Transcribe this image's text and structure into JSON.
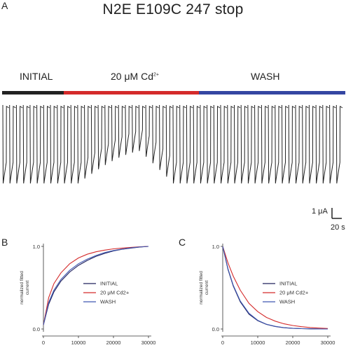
{
  "panel_a": {
    "letter": "A",
    "title": "N2E E109C 247 stop",
    "conditions": [
      {
        "label_main": "INITIAL",
        "label_sup": "",
        "color": "#222222"
      },
      {
        "label_main": "20 μM Cd",
        "label_sup": "2+",
        "color": "#d42a2a"
      },
      {
        "label_main": "WASH",
        "label_sup": "",
        "color": "#3446a2"
      }
    ],
    "scale_bar": {
      "current_label": "1 μA",
      "time_label": "20 s"
    }
  },
  "chart_data": [
    {
      "type": "line",
      "panel": "B",
      "ylabel": "normalized fitted current",
      "xlim": [
        0,
        30000
      ],
      "ylim": [
        0.0,
        1.0
      ],
      "xticks": [
        "0",
        "10000",
        "20000",
        "30000"
      ],
      "yticks": [
        "0.0",
        "1.0"
      ],
      "legend_position": "center-right",
      "x": [
        0,
        1500,
        3000,
        5000,
        7500,
        10000,
        12500,
        15000,
        17500,
        20000,
        22500,
        25000,
        27500,
        30000
      ],
      "series": [
        {
          "name": "INITIAL",
          "color": "#20225e",
          "values": [
            0.05,
            0.3,
            0.45,
            0.58,
            0.69,
            0.77,
            0.83,
            0.88,
            0.915,
            0.945,
            0.965,
            0.98,
            0.992,
            1.0
          ]
        },
        {
          "name": "20 μM Cd2+",
          "color": "#d42a2a",
          "values": [
            0.05,
            0.38,
            0.55,
            0.68,
            0.79,
            0.86,
            0.905,
            0.935,
            0.955,
            0.97,
            0.98,
            0.988,
            0.995,
            1.0
          ]
        },
        {
          "name": "WASH",
          "color": "#3f56b0",
          "values": [
            0.05,
            0.32,
            0.47,
            0.6,
            0.71,
            0.79,
            0.845,
            0.89,
            0.925,
            0.95,
            0.968,
            0.982,
            0.993,
            1.0
          ]
        }
      ]
    },
    {
      "type": "line",
      "panel": "C",
      "ylabel": "normalized fitted current",
      "xlim": [
        0,
        30000
      ],
      "ylim": [
        0.0,
        1.0
      ],
      "xticks": [
        "0",
        "10000",
        "20000",
        "30000"
      ],
      "yticks": [
        "0.0",
        "1.0"
      ],
      "legend_position": "center-right",
      "x": [
        0,
        1500,
        3000,
        5000,
        7500,
        10000,
        12500,
        15000,
        17500,
        20000,
        22500,
        25000,
        27500,
        30000
      ],
      "series": [
        {
          "name": "INITIAL",
          "color": "#20225e",
          "values": [
            1.0,
            0.72,
            0.52,
            0.33,
            0.18,
            0.1,
            0.055,
            0.03,
            0.015,
            0.008,
            0.004,
            0.002,
            0.001,
            0.0
          ]
        },
        {
          "name": "20 μM Cd2+",
          "color": "#d42a2a",
          "values": [
            1.0,
            0.8,
            0.64,
            0.47,
            0.31,
            0.21,
            0.14,
            0.095,
            0.063,
            0.042,
            0.028,
            0.018,
            0.011,
            0.006
          ]
        },
        {
          "name": "WASH",
          "color": "#3f56b0",
          "values": [
            1.0,
            0.73,
            0.53,
            0.34,
            0.19,
            0.105,
            0.058,
            0.032,
            0.017,
            0.009,
            0.005,
            0.003,
            0.001,
            0.0
          ]
        }
      ]
    }
  ]
}
